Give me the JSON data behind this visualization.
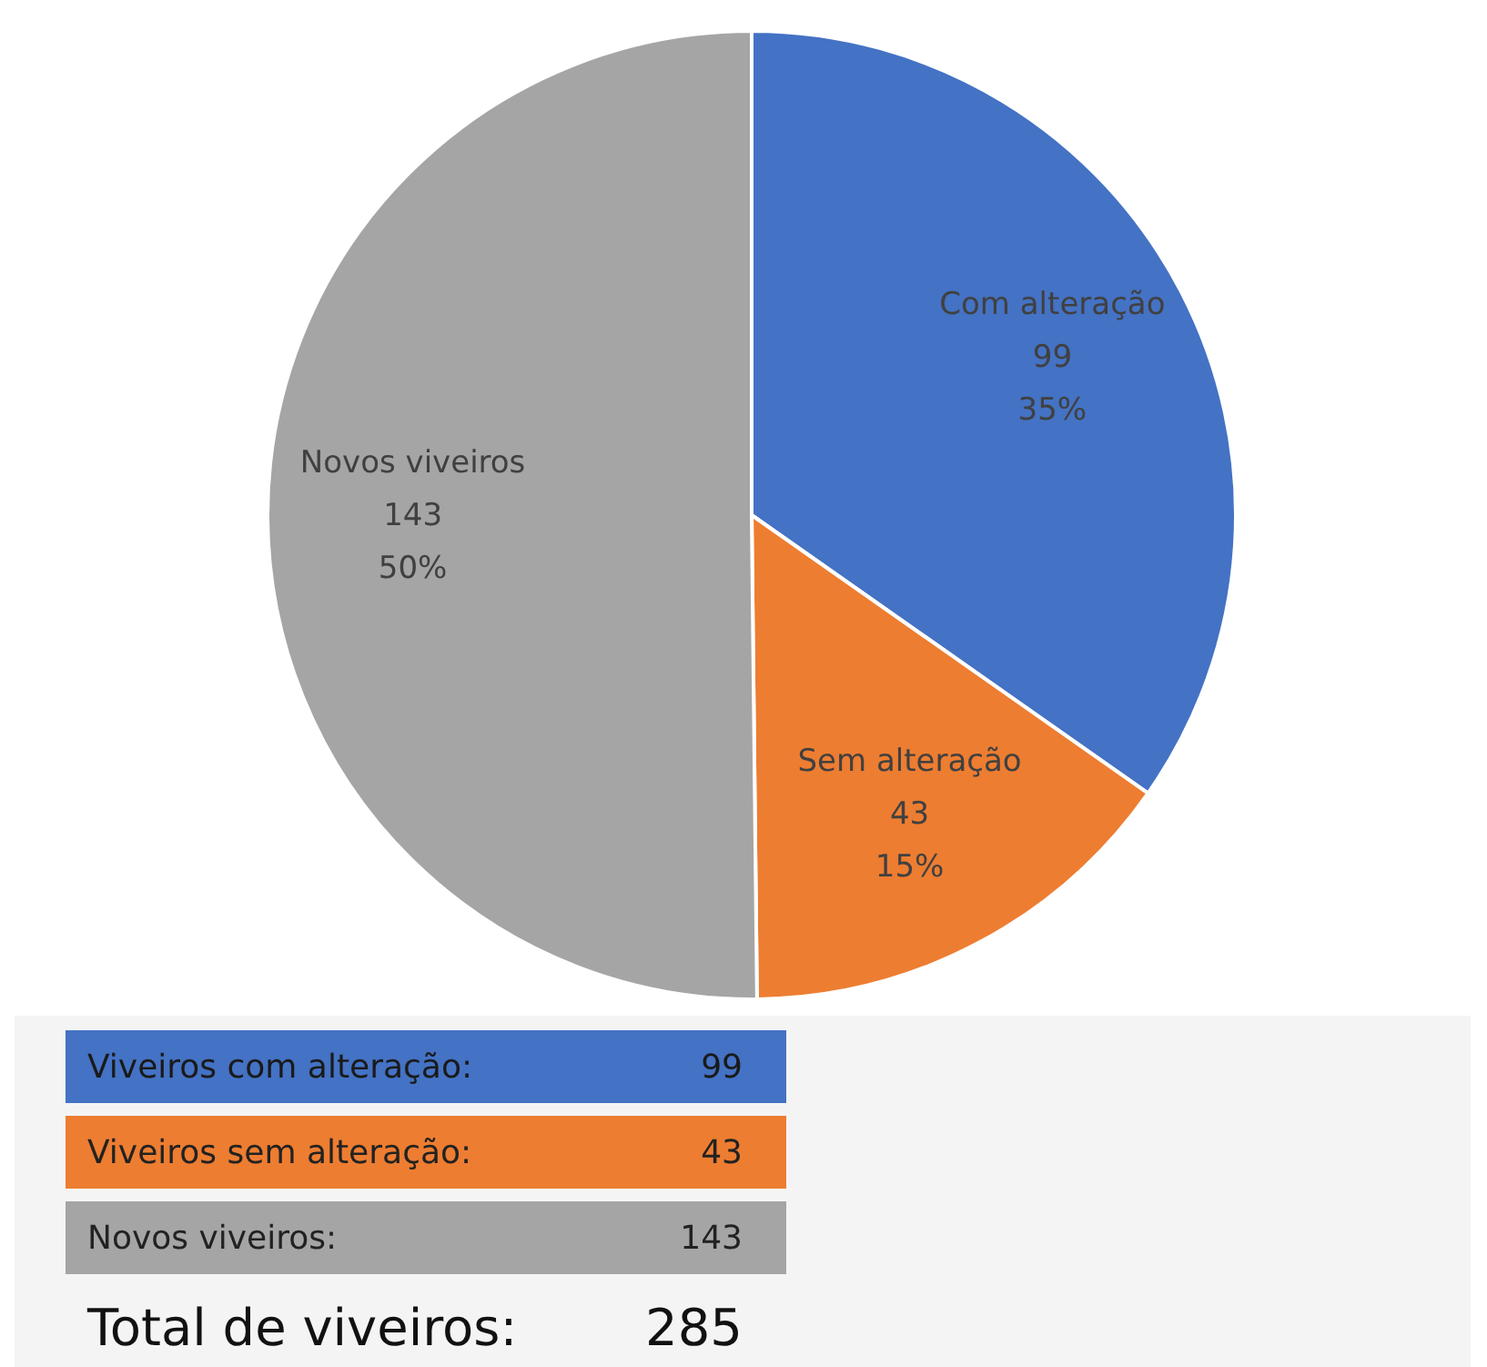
{
  "chart_data": {
    "type": "pie",
    "categories": [
      "Com alteração",
      "Sem alteração",
      "Novos viveiros"
    ],
    "values": [
      99,
      43,
      143
    ],
    "colors": [
      "#4472c4",
      "#ed7d31",
      "#a5a5a5"
    ],
    "value_labels": [
      "99\n35%",
      "43\n15%",
      "143\n50%"
    ],
    "legend": false,
    "annotations": [
      "Viveiros com alteração:",
      "99",
      "Viveiros sem alteração:",
      "43",
      "Novos viveiros:",
      "143",
      "Total de viveiros:",
      "285"
    ]
  }
}
